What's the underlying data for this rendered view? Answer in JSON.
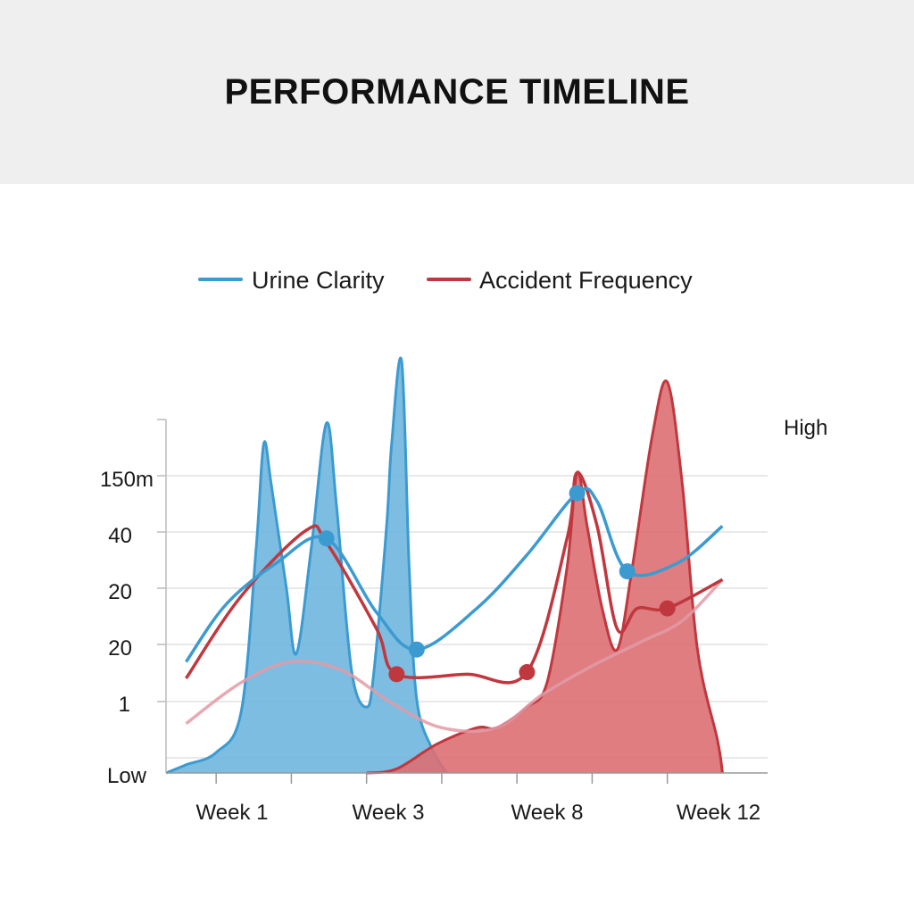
{
  "header": {
    "title": "PERFORMANCE TIMELINE"
  },
  "chart_data": {
    "type": "area",
    "title": "PERFORMANCE TIMELINE",
    "legend_position": "top-center",
    "grid": true,
    "y_axis_labels": [
      "150m",
      "40",
      "20",
      "20",
      "1",
      "Low"
    ],
    "y_axis_right_label": "High",
    "x_range": [
      0,
      12
    ],
    "y_range": [
      0,
      100
    ],
    "x_tick_labels": [
      {
        "x": 1,
        "label": "Week 1"
      },
      {
        "x": 4,
        "label": "Week 3"
      },
      {
        "x": 7,
        "label": "Week 8"
      },
      {
        "x": 10,
        "label": "Week 12"
      }
    ],
    "x_minor_ticks": [
      1,
      2.5,
      4,
      5.5,
      7,
      8.5,
      10
    ],
    "series": [
      {
        "name": "Urine Clarity",
        "color": "#3b9bd0",
        "area_color": "#6fb6de",
        "line_points": [
          [
            0.4,
            27
          ],
          [
            1.2,
            41
          ],
          [
            2.2,
            51
          ],
          [
            3.2,
            57
          ],
          [
            4.2,
            39
          ],
          [
            5,
            30
          ],
          [
            6.2,
            40
          ],
          [
            7.2,
            53
          ],
          [
            8.2,
            68
          ],
          [
            8.6,
            66
          ],
          [
            9.2,
            49
          ],
          [
            10.2,
            51
          ],
          [
            11.1,
            60
          ]
        ],
        "markers": [
          [
            3.2,
            57
          ],
          [
            5,
            30
          ],
          [
            8.2,
            68
          ],
          [
            9.2,
            49
          ]
        ],
        "area_points": [
          [
            0,
            0
          ],
          [
            0.4,
            2
          ],
          [
            1,
            5
          ],
          [
            1.5,
            15
          ],
          [
            1.8,
            55
          ],
          [
            1.95,
            80
          ],
          [
            2.1,
            70
          ],
          [
            2.4,
            45
          ],
          [
            2.6,
            29
          ],
          [
            2.9,
            55
          ],
          [
            3.2,
            85
          ],
          [
            3.4,
            65
          ],
          [
            3.7,
            25
          ],
          [
            4,
            16
          ],
          [
            4.15,
            25
          ],
          [
            4.4,
            60
          ],
          [
            4.5,
            80
          ],
          [
            4.7,
            100
          ],
          [
            4.85,
            50
          ],
          [
            5,
            18
          ],
          [
            5.3,
            6
          ],
          [
            5.6,
            0
          ]
        ]
      },
      {
        "name": "Accident Frequency",
        "color": "#c0383e",
        "area_color": "#dc6f73",
        "line_points": [
          [
            0.4,
            23
          ],
          [
            1.5,
            43
          ],
          [
            2.8,
            59
          ],
          [
            3.2,
            56
          ],
          [
            4.2,
            35
          ],
          [
            4.6,
            24
          ],
          [
            6,
            24
          ],
          [
            7.2,
            24.5
          ],
          [
            8,
            57
          ],
          [
            8.2,
            73
          ],
          [
            8.6,
            60
          ],
          [
            9,
            35
          ],
          [
            9.4,
            40
          ],
          [
            10,
            40
          ],
          [
            11.1,
            47
          ]
        ],
        "markers": [
          [
            4.6,
            24
          ],
          [
            7.2,
            24.5
          ],
          [
            10,
            40
          ]
        ],
        "area_points": [
          [
            4,
            0
          ],
          [
            4.6,
            1
          ],
          [
            5.4,
            7
          ],
          [
            6.2,
            11
          ],
          [
            6.6,
            11
          ],
          [
            7.2,
            16
          ],
          [
            7.6,
            22
          ],
          [
            8,
            50
          ],
          [
            8.2,
            73
          ],
          [
            8.4,
            60
          ],
          [
            8.7,
            40
          ],
          [
            9,
            30
          ],
          [
            9.3,
            50
          ],
          [
            9.7,
            82
          ],
          [
            10,
            95
          ],
          [
            10.3,
            70
          ],
          [
            10.6,
            30
          ],
          [
            11,
            8
          ],
          [
            11.1,
            0
          ]
        ]
      },
      {
        "name": "",
        "color": "#e39aa6",
        "line_points": [
          [
            0.4,
            12
          ],
          [
            1.5,
            22
          ],
          [
            2.5,
            27
          ],
          [
            3.5,
            25
          ],
          [
            4.5,
            17
          ],
          [
            5.5,
            11
          ],
          [
            6.6,
            11
          ],
          [
            7.5,
            19
          ],
          [
            8.5,
            26
          ],
          [
            9.5,
            32
          ],
          [
            10.3,
            37
          ],
          [
            11.1,
            47
          ]
        ]
      }
    ]
  }
}
